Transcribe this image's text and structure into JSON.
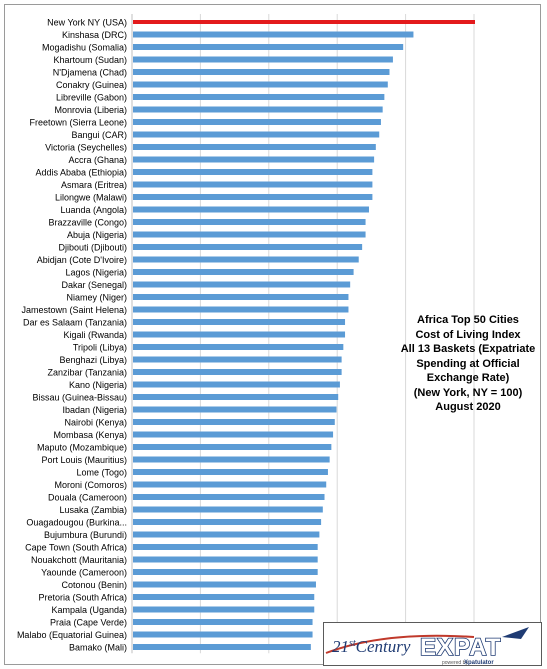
{
  "chart_data": {
    "type": "bar",
    "orientation": "horizontal",
    "title_lines": [
      "Africa Top 50 Cities",
      "Cost of Living Index",
      "All 13 Baskets (Expatriate",
      "Spending  at Official",
      "Exchange Rate)",
      "(New York, NY = 100)",
      "August 2020"
    ],
    "categories": [
      "New York NY (USA)",
      "Kinshasa (DRC)",
      "Mogadishu (Somalia)",
      "Khartoum (Sudan)",
      "N'Djamena (Chad)",
      "Conakry (Guinea)",
      "Libreville (Gabon)",
      "Monrovia (Liberia)",
      "Freetown (Sierra Leone)",
      "Bangui (CAR)",
      "Victoria (Seychelles)",
      "Accra (Ghana)",
      "Addis Ababa (Ethiopia)",
      "Asmara (Eritrea)",
      "Lilongwe (Malawi)",
      "Luanda (Angola)",
      "Brazzaville (Congo)",
      "Abuja (Nigeria)",
      "Djibouti (Djibouti)",
      "Abidjan (Cote D'Ivoire)",
      "Lagos (Nigeria)",
      "Dakar (Senegal)",
      "Niamey (Niger)",
      "Jamestown (Saint Helena)",
      "Dar es Salaam (Tanzania)",
      "Kigali (Rwanda)",
      "Tripoli (Libya)",
      "Benghazi (Libya)",
      "Zanzibar (Tanzania)",
      "Kano (Nigeria)",
      "Bissau (Guinea-Bissau)",
      "Ibadan (Nigeria)",
      "Nairobi (Kenya)",
      "Mombasa (Kenya)",
      "Maputo (Mozambique)",
      "Port Louis (Mauritius)",
      "Lome (Togo)",
      "Moroni (Comoros)",
      "Douala (Cameroon)",
      "Lusaka (Zambia)",
      "Ouagadougou (Burkina...",
      "Bujumbura (Burundi)",
      "Cape Town (South Africa)",
      "Nouakchott (Mauritania)",
      "Yaounde (Cameroon)",
      "Cotonou (Benin)",
      "Pretoria (South Africa)",
      "Kampala (Uganda)",
      "Praia (Cape Verde)",
      "Malabo (Equatorial Guinea)",
      "Bamako (Mali)"
    ],
    "values": [
      100,
      82,
      79,
      76,
      75,
      74.5,
      73.5,
      73,
      72.5,
      72,
      71,
      70.5,
      70,
      70,
      70,
      69,
      68,
      68,
      67,
      66,
      64.5,
      63.5,
      63,
      63,
      62,
      62,
      61.5,
      61,
      61,
      60.5,
      60,
      59.5,
      59,
      58.5,
      58,
      57.5,
      57,
      56.5,
      56,
      55.5,
      55,
      54.5,
      54,
      54,
      54,
      53.5,
      53,
      53,
      52.5,
      52.5,
      52
    ],
    "highlight_index": 0,
    "xlim": [
      0,
      100
    ],
    "grid": true,
    "legend": "none",
    "colors": {
      "bar": "#5b9bd5",
      "highlight": "#e31a1c",
      "grid": "#d9d9d9"
    }
  },
  "logo": {
    "prefix": "21",
    "superscript": "st",
    "word": "Century",
    "brand": "EXPAT",
    "tagline": "powered by",
    "sub_brand": "Xpatulator"
  }
}
